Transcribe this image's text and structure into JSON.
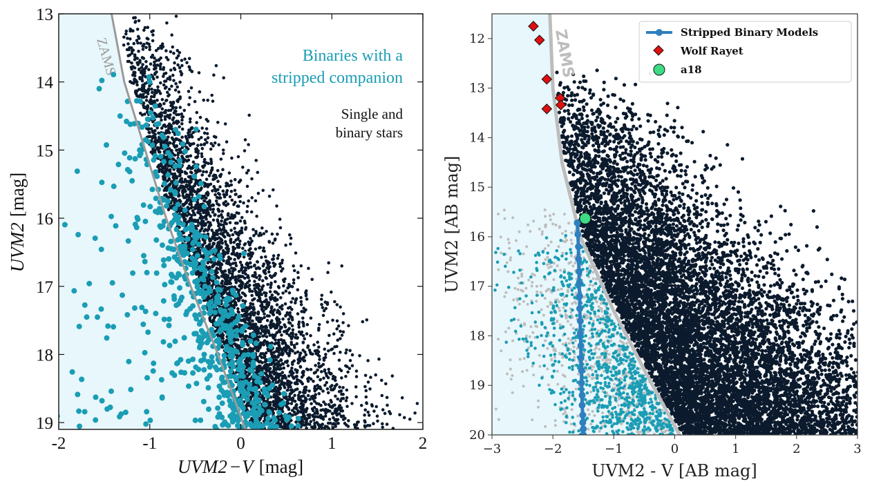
{
  "colors": {
    "single_binary": "#0b1a2c",
    "stripped": "#1a9db5",
    "zams": "#9a9a9a",
    "region_fill": "#e8f7fb",
    "background_gray": "#bdbdbd",
    "model_line": "#2f7fbf",
    "wolf_rayet": "#e01010",
    "a18": "#3ddc84"
  },
  "chart_data": [
    {
      "type": "scatter",
      "xlabel_prefix": "UVM2",
      "xlabel_minus": "−",
      "xlabel_v": "V",
      "xlabel_unit": "[mag]",
      "ylabel_prefix": "UVM2",
      "ylabel_unit": "[mag]",
      "xlim": [
        -2,
        2
      ],
      "ylim": [
        19.1,
        13
      ],
      "y_inverted": true,
      "x_ticks": [
        "-2",
        "-1",
        "0",
        "1",
        "2"
      ],
      "y_ticks": [
        "13",
        "14",
        "15",
        "16",
        "17",
        "18",
        "19"
      ],
      "annotations": {
        "zams": "ZAMS",
        "stripped_line1": "Binaries with a",
        "stripped_line2": "stripped companion",
        "single_line1": "Single and",
        "single_line2": "binary stars"
      },
      "zams_curve": [
        [
          -1.42,
          13.0
        ],
        [
          -1.28,
          14.0
        ],
        [
          -1.05,
          15.0
        ],
        [
          -0.82,
          16.0
        ],
        [
          -0.55,
          17.0
        ],
        [
          -0.25,
          18.0
        ],
        [
          0.05,
          19.1
        ]
      ],
      "series": [
        {
          "key": "single_binary",
          "count": 4200,
          "pattern": "band right of ZAMS, width ~1.1 mag"
        },
        {
          "key": "stripped",
          "count": 650,
          "pattern": "concentrated near ZAMS, faint end left spread"
        }
      ]
    },
    {
      "type": "scatter",
      "xlabel": "UVM2 - V [AB mag]",
      "ylabel": "UVM2 [AB mag]",
      "xlim": [
        -3,
        3
      ],
      "ylim": [
        20,
        11.5
      ],
      "y_inverted": true,
      "x_ticks": [
        "−3",
        "−2",
        "−1",
        "0",
        "1",
        "2",
        "3"
      ],
      "y_ticks": [
        "12",
        "13",
        "14",
        "15",
        "16",
        "17",
        "18",
        "19",
        "20"
      ],
      "annotations": {
        "zams": "ZAMS"
      },
      "legend": [
        {
          "label": "Stripped Binary Models",
          "marker": "line-dot"
        },
        {
          "label": "Wolf Rayet",
          "marker": "diamond"
        },
        {
          "label": "a18",
          "marker": "circle"
        }
      ],
      "legend_position": "top-right",
      "zams_curve": [
        [
          -2.05,
          11.5
        ],
        [
          -2.0,
          13.0
        ],
        [
          -1.85,
          14.5
        ],
        [
          -1.55,
          16.0
        ],
        [
          -1.0,
          17.5
        ],
        [
          -0.45,
          18.8
        ],
        [
          0.08,
          20.0
        ]
      ],
      "stripped_binary_models": {
        "x": [
          -1.6,
          -1.59,
          -1.58,
          -1.58,
          -1.57,
          -1.57,
          -1.56,
          -1.56,
          -1.55,
          -1.55,
          -1.54,
          -1.54,
          -1.53,
          -1.53,
          -1.52,
          -1.52,
          -1.51,
          -1.51,
          -1.5,
          -1.5
        ],
        "y": [
          15.72,
          15.95,
          16.2,
          16.45,
          16.7,
          16.95,
          17.2,
          17.45,
          17.7,
          17.95,
          18.2,
          18.45,
          18.7,
          18.95,
          19.2,
          19.4,
          19.6,
          19.75,
          19.88,
          20.0
        ]
      },
      "wolf_rayet": {
        "x": [
          -2.32,
          -2.22,
          -2.1,
          -1.88,
          -1.87,
          -2.1
        ],
        "y": [
          11.75,
          12.03,
          12.82,
          13.2,
          13.34,
          13.42
        ]
      },
      "a18": {
        "x": [
          -1.47
        ],
        "y": [
          15.63
        ]
      },
      "series": [
        {
          "key": "single_binary",
          "count": 9000,
          "pattern": "dense cloud right of ZAMS"
        },
        {
          "key": "stripped",
          "count": 900,
          "pattern": "teal band left of ZAMS at faint mags"
        },
        {
          "key": "background_gray",
          "count": 700,
          "pattern": "gray scatter left of ZAMS"
        }
      ]
    }
  ]
}
